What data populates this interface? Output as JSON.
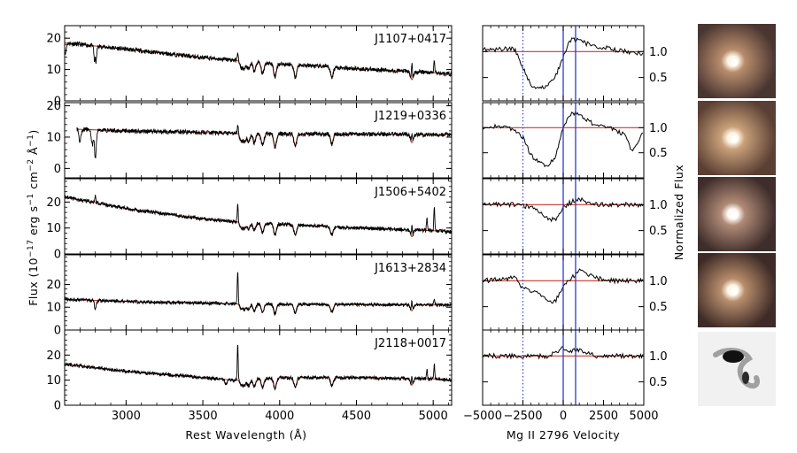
{
  "chart_data": [
    {
      "type": "line",
      "name": "spectra",
      "xlabel": "Rest Wavelength (Å)",
      "ylabel_parts": [
        "Flux (10",
        "−17",
        " erg s",
        "−1",
        " cm",
        "−2",
        " Å",
        "−1",
        ")"
      ],
      "xlim": [
        2600,
        5120
      ],
      "x_ticks": [
        3000,
        3500,
        4000,
        4500,
        5000
      ],
      "x_tick_labels": [
        "3000",
        "3500",
        "4000",
        "4500",
        "5000"
      ],
      "series_colors": {
        "observed": "#000000",
        "model": "#c8382d"
      },
      "panels": [
        {
          "label": "J1107+0417",
          "ylim": [
            0,
            24
          ],
          "y_ticks": [
            0,
            10,
            20
          ],
          "y_tick_labels": [
            "0",
            "10",
            "20"
          ],
          "anchor_x": [
            2600,
            3000,
            3500,
            3700,
            4000,
            4500,
            5000,
            5120
          ],
          "anchor_y": [
            18.5,
            16.5,
            13.8,
            13.0,
            11.8,
            10.3,
            9.0,
            8.5
          ],
          "absorptions": [
            {
              "x": 2800,
              "depth": 9
            },
            {
              "x": 2590,
              "depth": 3
            },
            {
              "x": 2605,
              "depth": 3
            }
          ],
          "emissions": [
            {
              "x": 2800,
              "height": 5
            },
            {
              "x": 3727,
              "height": 3
            },
            {
              "x": 4861,
              "height": 5
            },
            {
              "x": 5007,
              "height": 4
            }
          ]
        },
        {
          "label": "J1219+0336",
          "ylim": [
            -3,
            21
          ],
          "y_ticks": [
            0,
            10,
            20
          ],
          "y_tick_labels": [
            "0",
            "10",
            "20"
          ],
          "start_x": 2680,
          "anchor_x": [
            2680,
            3000,
            3500,
            3700,
            4000,
            4500,
            5000,
            5120
          ],
          "anchor_y": [
            12.5,
            12.0,
            11.5,
            11.2,
            11.0,
            11.0,
            10.8,
            10.8
          ],
          "absorptions": [
            {
              "x": 2800,
              "depth": 9
            },
            {
              "x": 2780,
              "depth": 5
            },
            {
              "x": 2700,
              "depth": 4
            }
          ],
          "emissions": [
            {
              "x": 3727,
              "height": 3
            },
            {
              "x": 4861,
              "height": 3
            }
          ]
        },
        {
          "label": "J1506+5402",
          "ylim": [
            0,
            29
          ],
          "y_ticks": [
            0,
            10,
            20
          ],
          "y_tick_labels": [
            "0",
            "10",
            "20"
          ],
          "anchor_x": [
            2600,
            3000,
            3500,
            3700,
            4000,
            4500,
            5000,
            5120
          ],
          "anchor_y": [
            22.0,
            17.5,
            13.5,
            12.5,
            11.5,
            10.0,
            9.0,
            8.5
          ],
          "absorptions": [],
          "emissions": [
            {
              "x": 2800,
              "height": 3
            },
            {
              "x": 3727,
              "height": 7
            },
            {
              "x": 4861,
              "height": 4
            },
            {
              "x": 4959,
              "height": 5
            },
            {
              "x": 5007,
              "height": 9
            }
          ]
        },
        {
          "label": "J1613+2834",
          "ylim": [
            0,
            33
          ],
          "y_ticks": [
            0,
            10,
            20
          ],
          "y_tick_labels": [
            "0",
            "10",
            "20"
          ],
          "anchor_x": [
            2600,
            3000,
            3500,
            3700,
            4000,
            4500,
            5000,
            5120
          ],
          "anchor_y": [
            13.5,
            12.5,
            11.8,
            11.5,
            11.3,
            11.2,
            11.0,
            11.0
          ],
          "absorptions": [
            {
              "x": 2800,
              "depth": 4
            }
          ],
          "emissions": [
            {
              "x": 3727,
              "height": 15
            },
            {
              "x": 4861,
              "height": 4
            },
            {
              "x": 5007,
              "height": 3
            }
          ]
        },
        {
          "label": "J2118+0017",
          "ylim": [
            0,
            30
          ],
          "y_ticks": [
            0,
            10,
            20
          ],
          "y_tick_labels": [
            "0",
            "10",
            "20"
          ],
          "anchor_x": [
            2600,
            3000,
            3500,
            3700,
            4000,
            4500,
            5000,
            5120
          ],
          "anchor_y": [
            16.5,
            13.5,
            11.0,
            10.0,
            11.0,
            11.0,
            10.5,
            10.0
          ],
          "absorptions": [
            {
              "x": 3650,
              "depth": 2
            }
          ],
          "emissions": [
            {
              "x": 3727,
              "height": 14
            },
            {
              "x": 4861,
              "height": 3
            },
            {
              "x": 4959,
              "height": 4
            },
            {
              "x": 5007,
              "height": 6
            }
          ]
        }
      ],
      "model_absorptions": [
        {
          "x": 3750,
          "depth": 2.2
        },
        {
          "x": 3771,
          "depth": 2.4
        },
        {
          "x": 3798,
          "depth": 2.6
        },
        {
          "x": 3835,
          "depth": 3.0
        },
        {
          "x": 3889,
          "depth": 3.6
        },
        {
          "x": 3970,
          "depth": 4.2
        },
        {
          "x": 4102,
          "depth": 3.8
        },
        {
          "x": 4340,
          "depth": 3.2
        },
        {
          "x": 4861,
          "depth": 2.6
        }
      ]
    },
    {
      "type": "line",
      "name": "mgii-profiles",
      "xlabel": "Mg II 2796 Velocity",
      "ylabel": "Normalized Flux",
      "xlim": [
        -5000,
        5000
      ],
      "x_ticks": [
        -5000,
        -2500,
        0,
        2500,
        5000
      ],
      "x_tick_labels": [
        "−5000",
        "−2500",
        "0",
        "2500",
        "5000"
      ],
      "reference_level": 1.0,
      "vertical_lines": [
        {
          "x": -2500,
          "style": "dotted",
          "color": "#2b3ad8"
        },
        {
          "x": 0,
          "style": "solid",
          "color": "#2b3ad8"
        },
        {
          "x": 768,
          "style": "solid",
          "color": "#2b3ad8"
        }
      ],
      "panels": [
        {
          "ylim": [
            0.05,
            1.5
          ],
          "y_ticks": [
            0.5,
            1.0
          ],
          "y_tick_labels": [
            "0.5",
            "1.0"
          ],
          "anchor_x": [
            -5000,
            -3000,
            -2500,
            -2000,
            -1500,
            -1000,
            -500,
            0,
            500,
            1000,
            2000,
            3000,
            4000,
            5000
          ],
          "anchor_y": [
            1.04,
            1.05,
            0.7,
            0.35,
            0.3,
            0.35,
            0.5,
            0.9,
            1.25,
            1.2,
            1.1,
            1.05,
            1.0,
            0.95
          ]
        },
        {
          "ylim": [
            0.0,
            1.5
          ],
          "y_ticks": [
            0.5,
            1.0
          ],
          "y_tick_labels": [
            "0.5",
            "1.0"
          ],
          "anchor_x": [
            -5000,
            -3500,
            -2500,
            -2000,
            -1500,
            -1000,
            -500,
            0,
            500,
            1000,
            2000,
            3000,
            3800,
            4300,
            5000
          ],
          "anchor_y": [
            1.0,
            1.05,
            0.8,
            0.45,
            0.3,
            0.25,
            0.4,
            1.05,
            1.3,
            1.25,
            1.05,
            1.0,
            0.85,
            0.5,
            0.95
          ]
        },
        {
          "ylim": [
            0.05,
            1.5
          ],
          "y_ticks": [
            0.5,
            1.0
          ],
          "y_tick_labels": [
            "0.5",
            "1.0"
          ],
          "anchor_x": [
            -5000,
            -3000,
            -2000,
            -1500,
            -1000,
            -500,
            0,
            500,
            1000,
            2000,
            3000,
            4000,
            5000
          ],
          "anchor_y": [
            1.0,
            1.0,
            0.95,
            0.85,
            0.75,
            0.7,
            0.95,
            1.05,
            1.1,
            1.0,
            1.0,
            1.0,
            1.0
          ]
        },
        {
          "ylim": [
            0.05,
            1.5
          ],
          "y_ticks": [
            0.5,
            1.0
          ],
          "y_tick_labels": [
            "0.5",
            "1.0"
          ],
          "anchor_x": [
            -5000,
            -3000,
            -2500,
            -1500,
            -1000,
            -500,
            0,
            500,
            1000,
            2000,
            3000,
            4000,
            5000
          ],
          "anchor_y": [
            1.0,
            1.05,
            0.85,
            0.75,
            0.6,
            0.6,
            0.9,
            1.05,
            1.2,
            1.05,
            1.0,
            1.0,
            1.0
          ]
        },
        {
          "ylim": [
            0.05,
            1.5
          ],
          "y_ticks": [
            0.5,
            1.0
          ],
          "y_tick_labels": [
            "0.5",
            "1.0"
          ],
          "anchor_x": [
            -5000,
            -3000,
            -1000,
            -500,
            0,
            500,
            1000,
            2000,
            3000,
            4000,
            5000
          ],
          "anchor_y": [
            1.0,
            1.0,
            1.0,
            1.05,
            1.15,
            1.1,
            1.1,
            1.0,
            1.0,
            1.0,
            1.0
          ]
        }
      ]
    }
  ],
  "images": [
    {
      "name": "galaxy-image-j1107+0417",
      "kind": "color",
      "background": "#4a3631",
      "halo": "#b88c6c",
      "core": "#fff6e8"
    },
    {
      "name": "galaxy-image-j1219+0336",
      "kind": "color",
      "background": "#5a3f34",
      "halo": "#c8a079",
      "core": "#fff6e6"
    },
    {
      "name": "galaxy-image-j1506+5402",
      "kind": "color",
      "background": "#3e2d2b",
      "halo": "#b08a76",
      "core": "#fffaf4"
    },
    {
      "name": "galaxy-image-j1613+2834",
      "kind": "color",
      "background": "#3e2b27",
      "halo": "#b88d6c",
      "core": "#fff8ea"
    },
    {
      "name": "galaxy-image-j2118+0017",
      "kind": "grayscale",
      "background": "#f1f1f1",
      "halo": "#9a9a9a",
      "core": "#111111"
    }
  ]
}
